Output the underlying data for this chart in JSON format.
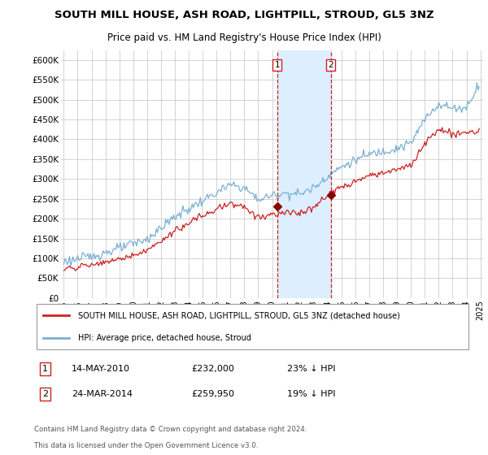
{
  "title": "SOUTH MILL HOUSE, ASH ROAD, LIGHTPILL, STROUD, GL5 3NZ",
  "subtitle": "Price paid vs. HM Land Registry's House Price Index (HPI)",
  "title_fontsize": 9.5,
  "subtitle_fontsize": 8.5,
  "ylim": [
    0,
    625000
  ],
  "yticks": [
    0,
    50000,
    100000,
    150000,
    200000,
    250000,
    300000,
    350000,
    400000,
    450000,
    500000,
    550000,
    600000
  ],
  "ytick_labels": [
    "£0",
    "£50K",
    "£100K",
    "£150K",
    "£200K",
    "£250K",
    "£300K",
    "£350K",
    "£400K",
    "£450K",
    "£500K",
    "£550K",
    "£600K"
  ],
  "hpi_color": "#7ab0d4",
  "price_color": "#cc2222",
  "marker_color": "#880000",
  "dashed_line_color": "#cc2222",
  "shade_color": "#ddeeff",
  "background_color": "#ffffff",
  "grid_color": "#cccccc",
  "legend_label_red": "SOUTH MILL HOUSE, ASH ROAD, LIGHTPILL, STROUD, GL5 3NZ (detached house)",
  "legend_label_blue": "HPI: Average price, detached house, Stroud",
  "sale1_date": "14-MAY-2010",
  "sale1_price": "£232,000",
  "sale1_pct": "23% ↓ HPI",
  "sale1_year": 2010.37,
  "sale1_value": 232000,
  "sale2_date": "24-MAR-2014",
  "sale2_price": "£259,950",
  "sale2_pct": "19% ↓ HPI",
  "sale2_year": 2014.23,
  "sale2_value": 259950,
  "footer1": "Contains HM Land Registry data © Crown copyright and database right 2024.",
  "footer2": "This data is licensed under the Open Government Licence v3.0.",
  "xlim": [
    1994.8,
    2025.2
  ],
  "xticks": [
    1995,
    1996,
    1997,
    1998,
    1999,
    2000,
    2001,
    2002,
    2003,
    2004,
    2005,
    2006,
    2007,
    2008,
    2009,
    2010,
    2011,
    2012,
    2013,
    2014,
    2015,
    2016,
    2017,
    2018,
    2019,
    2020,
    2021,
    2022,
    2023,
    2024,
    2025
  ]
}
